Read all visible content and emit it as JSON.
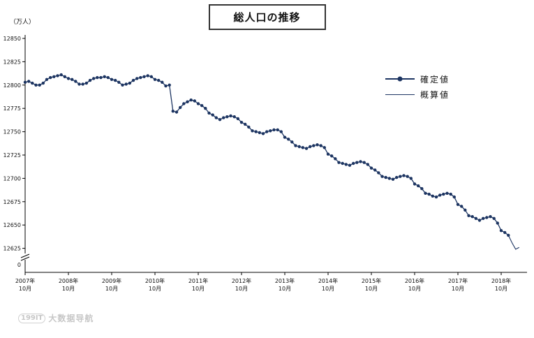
{
  "title": "総人口の推移",
  "y_axis_unit": "（万人）",
  "legend": {
    "confirmed": "確定値",
    "preliminary": "概算値"
  },
  "watermark": {
    "logo": "199IT",
    "text": "大数据导航"
  },
  "colors": {
    "series": "#1c3461",
    "axis": "#000000",
    "text": "#111111",
    "watermark": "#c7c7c7"
  },
  "chart_data": {
    "type": "line",
    "title": "総人口の推移",
    "ylabel": "（万人）",
    "unit": "万人",
    "grid": false,
    "legend_position": "upper-right-inside",
    "ylim_display": [
      12625,
      12850
    ],
    "zero_break": true,
    "y_zero_label": "0",
    "y_ticks": [
      12850,
      12825,
      12800,
      12775,
      12750,
      12725,
      12700,
      12675,
      12650,
      12625
    ],
    "x_tick_years": [
      "2007年",
      "2008年",
      "2009年",
      "2010年",
      "2011年",
      "2012年",
      "2013年",
      "2014年",
      "2015年",
      "2016年",
      "2017年",
      "2018年"
    ],
    "x_tick_month": "10月",
    "x_start": "2007-10",
    "x_interval": "month",
    "series_names": [
      "確定値",
      "概算値"
    ],
    "confirmed_count": 135,
    "values": [
      12803,
      12804,
      12802,
      12800,
      12800,
      12802,
      12806,
      12808,
      12809,
      12810,
      12811,
      12809,
      12807,
      12806,
      12804,
      12801,
      12801,
      12802,
      12805,
      12807,
      12808,
      12808,
      12809,
      12808,
      12806,
      12805,
      12803,
      12800,
      12801,
      12802,
      12805,
      12807,
      12808,
      12809,
      12810,
      12809,
      12806,
      12805,
      12803,
      12799,
      12800,
      12772,
      12771,
      12776,
      12780,
      12782,
      12784,
      12783,
      12780,
      12778,
      12775,
      12770,
      12768,
      12765,
      12763,
      12765,
      12766,
      12767,
      12766,
      12764,
      12760,
      12758,
      12755,
      12751,
      12750,
      12749,
      12748,
      12750,
      12751,
      12752,
      12752,
      12750,
      12744,
      12742,
      12739,
      12735,
      12734,
      12733,
      12732,
      12734,
      12735,
      12736,
      12735,
      12733,
      12726,
      12724,
      12721,
      12717,
      12716,
      12715,
      12714,
      12716,
      12717,
      12718,
      12717,
      12715,
      12711,
      12709,
      12706,
      12702,
      12701,
      12700,
      12699,
      12701,
      12702,
      12703,
      12702,
      12700,
      12694,
      12692,
      12689,
      12684,
      12683,
      12681,
      12680,
      12682,
      12683,
      12684,
      12683,
      12680,
      12672,
      12670,
      12666,
      12660,
      12659,
      12657,
      12655,
      12657,
      12658,
      12659,
      12657,
      12652,
      12644,
      12642,
      12639,
      12631,
      12624,
      12626
    ]
  }
}
